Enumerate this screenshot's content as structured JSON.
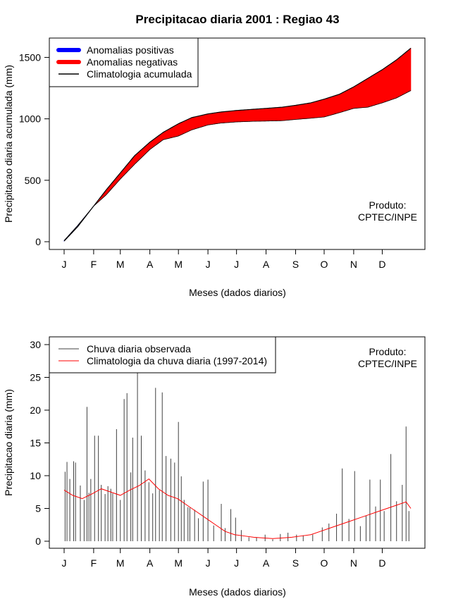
{
  "chart_data": [
    {
      "type": "area",
      "title": "Precipitacao diaria 2001 : Regiao 43",
      "xlabel": "Meses (dados diarios)",
      "ylabel": "Precipitacao diaria acumulada (mm)",
      "ylim": [
        0,
        1600
      ],
      "yticks": [
        0,
        500,
        1000,
        1500
      ],
      "month_labels": [
        "J",
        "F",
        "M",
        "A",
        "M",
        "J",
        "J",
        "A",
        "S",
        "O",
        "N",
        "D"
      ],
      "legend": [
        {
          "label": "Anomalias positivas",
          "color": "#0000ff",
          "kind": "thick-line"
        },
        {
          "label": "Anomalias negativas",
          "color": "#ff0000",
          "kind": "thick-line"
        },
        {
          "label": "Climatologia acumulada",
          "color": "#000000",
          "kind": "line"
        }
      ],
      "note": [
        "Produto:",
        "CPTEC/INPE"
      ],
      "series": [
        {
          "name": "Climatologia acumulada",
          "day": [
            1,
            15,
            32,
            45,
            60,
            75,
            91,
            105,
            121,
            135,
            152,
            165,
            182,
            200,
            213,
            230,
            244,
            260,
            274,
            290,
            305,
            320,
            335,
            350,
            365
          ],
          "values": [
            5,
            120,
            290,
            420,
            560,
            700,
            810,
            890,
            960,
            1010,
            1040,
            1055,
            1068,
            1078,
            1085,
            1095,
            1110,
            1130,
            1160,
            1200,
            1260,
            1330,
            1400,
            1480,
            1575
          ]
        },
        {
          "name": "Observada acumulada",
          "day": [
            1,
            15,
            32,
            45,
            60,
            75,
            91,
            105,
            121,
            135,
            152,
            165,
            182,
            200,
            213,
            230,
            244,
            260,
            274,
            290,
            305,
            320,
            335,
            350,
            365
          ],
          "values": [
            10,
            130,
            290,
            380,
            510,
            630,
            750,
            830,
            860,
            910,
            950,
            965,
            975,
            980,
            982,
            985,
            995,
            1005,
            1015,
            1050,
            1085,
            1095,
            1130,
            1170,
            1230
          ]
        }
      ]
    },
    {
      "type": "bar",
      "xlabel": "Meses (dados diarios)",
      "ylabel": "Precipitacao diaria (mm)",
      "ylim": [
        0,
        30
      ],
      "yticks": [
        0,
        5,
        10,
        15,
        20,
        25,
        30
      ],
      "month_labels": [
        "J",
        "F",
        "M",
        "A",
        "M",
        "J",
        "J",
        "A",
        "S",
        "O",
        "N",
        "D"
      ],
      "legend": [
        {
          "label": "Chuva diaria observada",
          "color": "#404040",
          "kind": "line"
        },
        {
          "label": "Climatologia da chuva diaria (1997-2014)",
          "color": "#ff0000",
          "kind": "line"
        }
      ],
      "note": [
        "Produto:",
        "CPTEC/INPE"
      ],
      "series": [
        {
          "name": "Chuva diaria observada",
          "day": [
            2,
            4,
            7,
            11,
            13,
            18,
            22,
            25,
            27,
            29,
            33,
            37,
            40,
            44,
            47,
            50,
            52,
            56,
            60,
            64,
            67,
            71,
            73,
            78,
            82,
            86,
            90,
            94,
            97,
            101,
            104,
            108,
            113,
            117,
            121,
            124,
            127,
            131,
            133,
            138,
            142,
            147,
            152,
            158,
            166,
            170,
            176,
            181,
            187,
            195,
            203,
            212,
            220,
            228,
            236,
            245,
            252,
            262,
            272,
            279,
            287,
            293,
            300,
            306,
            312,
            318,
            322,
            328,
            333,
            337,
            344,
            350,
            356,
            360,
            363
          ],
          "values": [
            10.6,
            12.1,
            9.5,
            12.2,
            12.0,
            8.5,
            6.3,
            20.5,
            7.4,
            9.5,
            16.1,
            16.1,
            8.6,
            7.2,
            8.4,
            8.0,
            7.3,
            17.1,
            6.3,
            21.7,
            22.6,
            10.5,
            15.8,
            26.0,
            16.1,
            10.8,
            9.0,
            7.3,
            23.4,
            7.8,
            22.7,
            13.0,
            12.6,
            12.0,
            18.2,
            9.9,
            6.3,
            5.2,
            5.1,
            4.8,
            3.5,
            9.1,
            9.4,
            2.4,
            5.7,
            2.0,
            4.9,
            3.6,
            1.7,
            0.6,
            0.6,
            1.0,
            0.3,
            1.1,
            1.3,
            1.0,
            0.9,
            1.0,
            2.1,
            2.7,
            4.2,
            11.1,
            3.4,
            10.7,
            2.3,
            3.9,
            9.4,
            5.3,
            9.4,
            4.6,
            13.3,
            6.1,
            8.6,
            17.5,
            4.6
          ]
        },
        {
          "name": "Climatologia da chuva diaria (1997-2014)",
          "day": [
            1,
            10,
            20,
            30,
            40,
            50,
            60,
            70,
            80,
            90,
            100,
            110,
            120,
            130,
            140,
            150,
            160,
            170,
            180,
            190,
            200,
            210,
            220,
            230,
            240,
            250,
            260,
            270,
            280,
            290,
            300,
            310,
            320,
            330,
            340,
            350,
            360,
            365
          ],
          "values": [
            7.8,
            7.0,
            6.5,
            7.2,
            8.0,
            7.5,
            7.0,
            7.8,
            8.5,
            9.5,
            8.0,
            7.0,
            6.5,
            5.5,
            4.5,
            3.5,
            2.5,
            1.5,
            1.0,
            0.8,
            0.6,
            0.5,
            0.4,
            0.5,
            0.6,
            0.8,
            1.0,
            1.5,
            2.0,
            2.5,
            3.0,
            3.5,
            4.0,
            4.5,
            5.0,
            5.5,
            6.0,
            5.0
          ]
        }
      ]
    }
  ]
}
